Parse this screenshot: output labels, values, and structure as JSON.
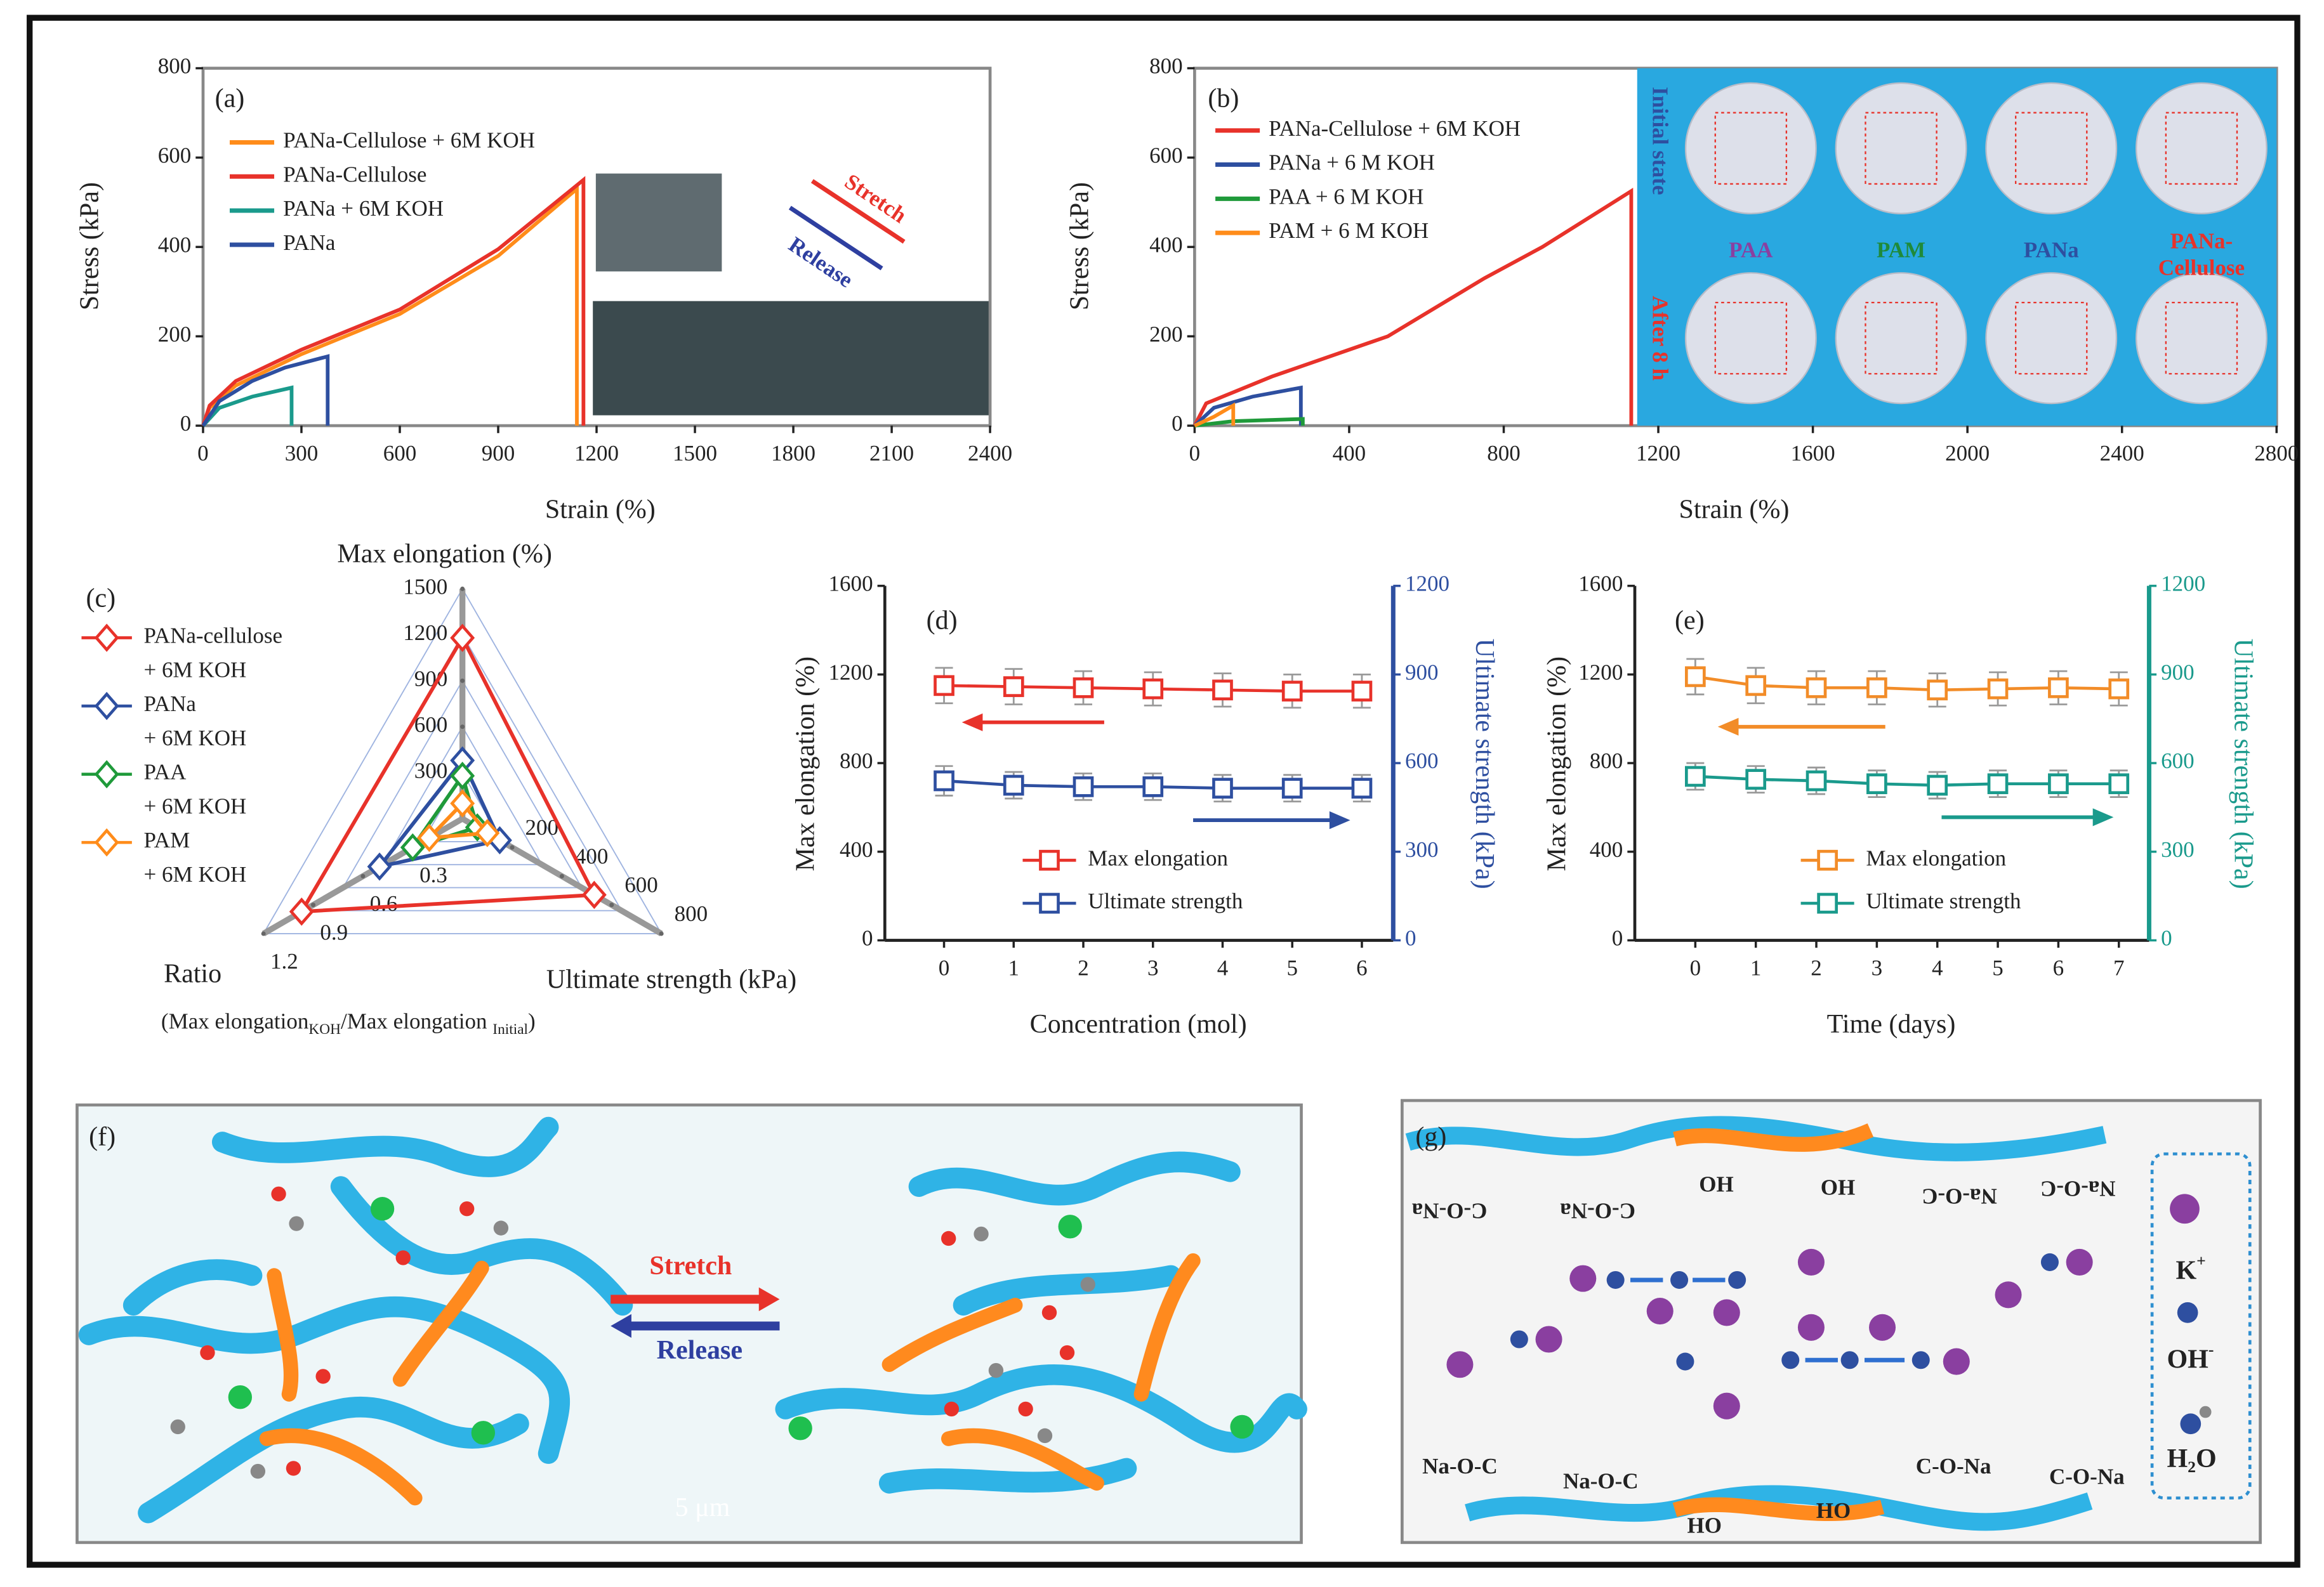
{
  "chart_data": [
    {
      "type": "line",
      "panel": "(a)",
      "x_label": "Strain (%)",
      "y_label": "Stress (kPa)",
      "xlim": [
        0,
        2400
      ],
      "xticks": [
        0,
        300,
        600,
        900,
        1200,
        1500,
        1800,
        2100,
        2400
      ],
      "ylim": [
        0,
        800
      ],
      "yticks": [
        0,
        200,
        400,
        600,
        800
      ],
      "annotations": [
        "Stretch",
        "Release"
      ],
      "series": [
        {
          "name": "PANa-Cellulose + 6M KOH",
          "color": "#ff8c1a",
          "x": [
            0,
            20,
            100,
            300,
            600,
            900,
            1140,
            1140
          ],
          "values": [
            0,
            40,
            90,
            160,
            250,
            380,
            530,
            0
          ]
        },
        {
          "name": "PANa-Cellulose",
          "color": "#e8322a",
          "x": [
            0,
            20,
            100,
            300,
            600,
            900,
            1160,
            1160
          ],
          "values": [
            0,
            45,
            100,
            170,
            260,
            395,
            550,
            0
          ]
        },
        {
          "name": "PANa + 6M KOH",
          "color": "#1a9a8c",
          "x": [
            0,
            50,
            150,
            270,
            270
          ],
          "values": [
            0,
            40,
            65,
            85,
            0
          ]
        },
        {
          "name": "PANa",
          "color": "#2e4fa0",
          "x": [
            0,
            50,
            150,
            250,
            380,
            380
          ],
          "values": [
            0,
            55,
            100,
            130,
            155,
            0
          ]
        }
      ]
    },
    {
      "type": "line",
      "panel": "(b)",
      "x_label": "Strain (%)",
      "y_label": "Stress (kPa)",
      "xlim": [
        0,
        2800
      ],
      "xticks": [
        0,
        400,
        800,
        1200,
        1600,
        2000,
        2400,
        2800
      ],
      "ylim": [
        0,
        800
      ],
      "yticks": [
        0,
        200,
        400,
        600,
        800
      ],
      "photo": {
        "rows": [
          "Initial state",
          "After 8 h"
        ],
        "row_colors": [
          "#2e4fa0",
          "#e8322a"
        ],
        "samples": [
          "PAA",
          "PAM",
          "PANa",
          "PANa-Cellulose"
        ],
        "sample_colors": [
          "#8a3fa0",
          "#1f8a3a",
          "#2e4fa0",
          "#e8322a"
        ]
      },
      "series": [
        {
          "name": "PANa-Cellulose + 6M KOH",
          "color": "#e8322a",
          "x": [
            0,
            30,
            200,
            500,
            750,
            900,
            1130,
            1130
          ],
          "values": [
            0,
            50,
            110,
            200,
            330,
            400,
            525,
            0
          ]
        },
        {
          "name": "PANa + 6 M KOH",
          "color": "#2e4fa0",
          "x": [
            0,
            50,
            150,
            275,
            275
          ],
          "values": [
            0,
            40,
            65,
            85,
            0
          ]
        },
        {
          "name": "PAA + 6 M KOH",
          "color": "#1f9a3a",
          "x": [
            0,
            100,
            280,
            280
          ],
          "values": [
            0,
            10,
            15,
            0
          ]
        },
        {
          "name": "PAM + 6 M KOH",
          "color": "#ff8c1a",
          "x": [
            0,
            50,
            100,
            100
          ],
          "values": [
            0,
            20,
            45,
            0
          ]
        }
      ]
    },
    {
      "type": "radar",
      "panel": "(c)",
      "axes": [
        {
          "label": "Max elongation (%)",
          "lim": [
            0,
            1500
          ],
          "ticks": [
            300,
            600,
            900,
            1200,
            1500
          ]
        },
        {
          "label": "Ultimate strength (kPa)",
          "lim": [
            0,
            800
          ],
          "ticks": [
            200,
            400,
            600,
            800
          ]
        },
        {
          "label": "Ratio",
          "lim": [
            0,
            1.2
          ],
          "ticks": [
            0.3,
            0.6,
            0.9,
            1.2
          ]
        }
      ],
      "axis_note": [
        "(Max elongation",
        "KOH",
        "/Max elongation ",
        "Initial",
        ")"
      ],
      "series": [
        {
          "name": "PANa-cellulose + 6M KOH",
          "color": "#e8322a",
          "values": [
            1180,
            530,
            0.97
          ]
        },
        {
          "name": "PANa + 6M KOH",
          "color": "#2e4fa0",
          "values": [
            380,
            150,
            0.5
          ]
        },
        {
          "name": "PAA + 6M KOH",
          "color": "#1f9a3a",
          "values": [
            280,
            60,
            0.3
          ]
        },
        {
          "name": "PAM + 6M KOH",
          "color": "#ff8c1a",
          "values": [
            100,
            100,
            0.2
          ]
        }
      ]
    },
    {
      "type": "errorline",
      "panel": "(d)",
      "x_label": "Concentration (mol)",
      "y_label": "Max elongation (%)",
      "y2_label": "Ultimate strength (kPa)",
      "y2_color": "#2e4fa0",
      "x": [
        0,
        1,
        2,
        3,
        4,
        5,
        6
      ],
      "xlim": [
        -0.85,
        6.45
      ],
      "xticks": [
        0,
        1,
        2,
        3,
        4,
        5,
        6
      ],
      "ylim": [
        0,
        1600
      ],
      "yticks": [
        0,
        400,
        800,
        1200,
        1600
      ],
      "y2lim": [
        0,
        1200
      ],
      "y2ticks": [
        0,
        300,
        600,
        900,
        1200
      ],
      "series": [
        {
          "name": "Max elongation",
          "color": "#e8322a",
          "values": [
            1150,
            1145,
            1140,
            1135,
            1130,
            1125,
            1125
          ],
          "errors": [
            80,
            80,
            75,
            75,
            75,
            75,
            75
          ]
        },
        {
          "name": "Ultimate strength",
          "color": "#2e4fa0",
          "axis": "y2",
          "values": [
            540,
            525,
            520,
            520,
            515,
            515,
            515
          ],
          "errors": [
            50,
            45,
            45,
            45,
            45,
            45,
            45
          ]
        }
      ]
    },
    {
      "type": "errorline",
      "panel": "(e)",
      "x_label": "Time (days)",
      "y_label": "Max elongation (%)",
      "y2_label": "Ultimate strength (kPa)",
      "y2_color": "#1a9a8c",
      "x": [
        0,
        1,
        2,
        3,
        4,
        5,
        6,
        7
      ],
      "xlim": [
        -1,
        7.5
      ],
      "xticks": [
        0,
        1,
        2,
        3,
        4,
        5,
        6,
        7
      ],
      "ylim": [
        0,
        1600
      ],
      "yticks": [
        0,
        400,
        800,
        1200,
        1600
      ],
      "y2lim": [
        0,
        1200
      ],
      "y2ticks": [
        0,
        300,
        600,
        900,
        1200
      ],
      "series": [
        {
          "name": "Max elongation",
          "color": "#f28c28",
          "values": [
            1190,
            1150,
            1140,
            1140,
            1130,
            1135,
            1140,
            1135
          ],
          "errors": [
            80,
            80,
            75,
            75,
            75,
            75,
            75,
            75
          ]
        },
        {
          "name": "Ultimate strength",
          "color": "#1a9a8c",
          "axis": "y2",
          "values": [
            555,
            545,
            540,
            530,
            525,
            530,
            530,
            530
          ],
          "errors": [
            45,
            45,
            45,
            45,
            45,
            45,
            45,
            45
          ]
        }
      ]
    }
  ],
  "diagram_f": {
    "panel": "(f)",
    "stretch": "Stretch",
    "release": "Release",
    "scale": "5 μm"
  },
  "diagram_g": {
    "panel": "(g)",
    "top": [
      "C-O-Na",
      "C-O-Na",
      "OH",
      "OH",
      "Na-O-C",
      "Na-O-C"
    ],
    "bottom": [
      "Na-O-C",
      "Na-O-C",
      "HO",
      "HO",
      "C-O-Na",
      "C-O-Na"
    ],
    "legend": {
      "k": "K",
      "k_charge": "+",
      "oh": "OH",
      "oh_charge": "-",
      "h2o": [
        "H",
        "2",
        "O"
      ]
    }
  }
}
